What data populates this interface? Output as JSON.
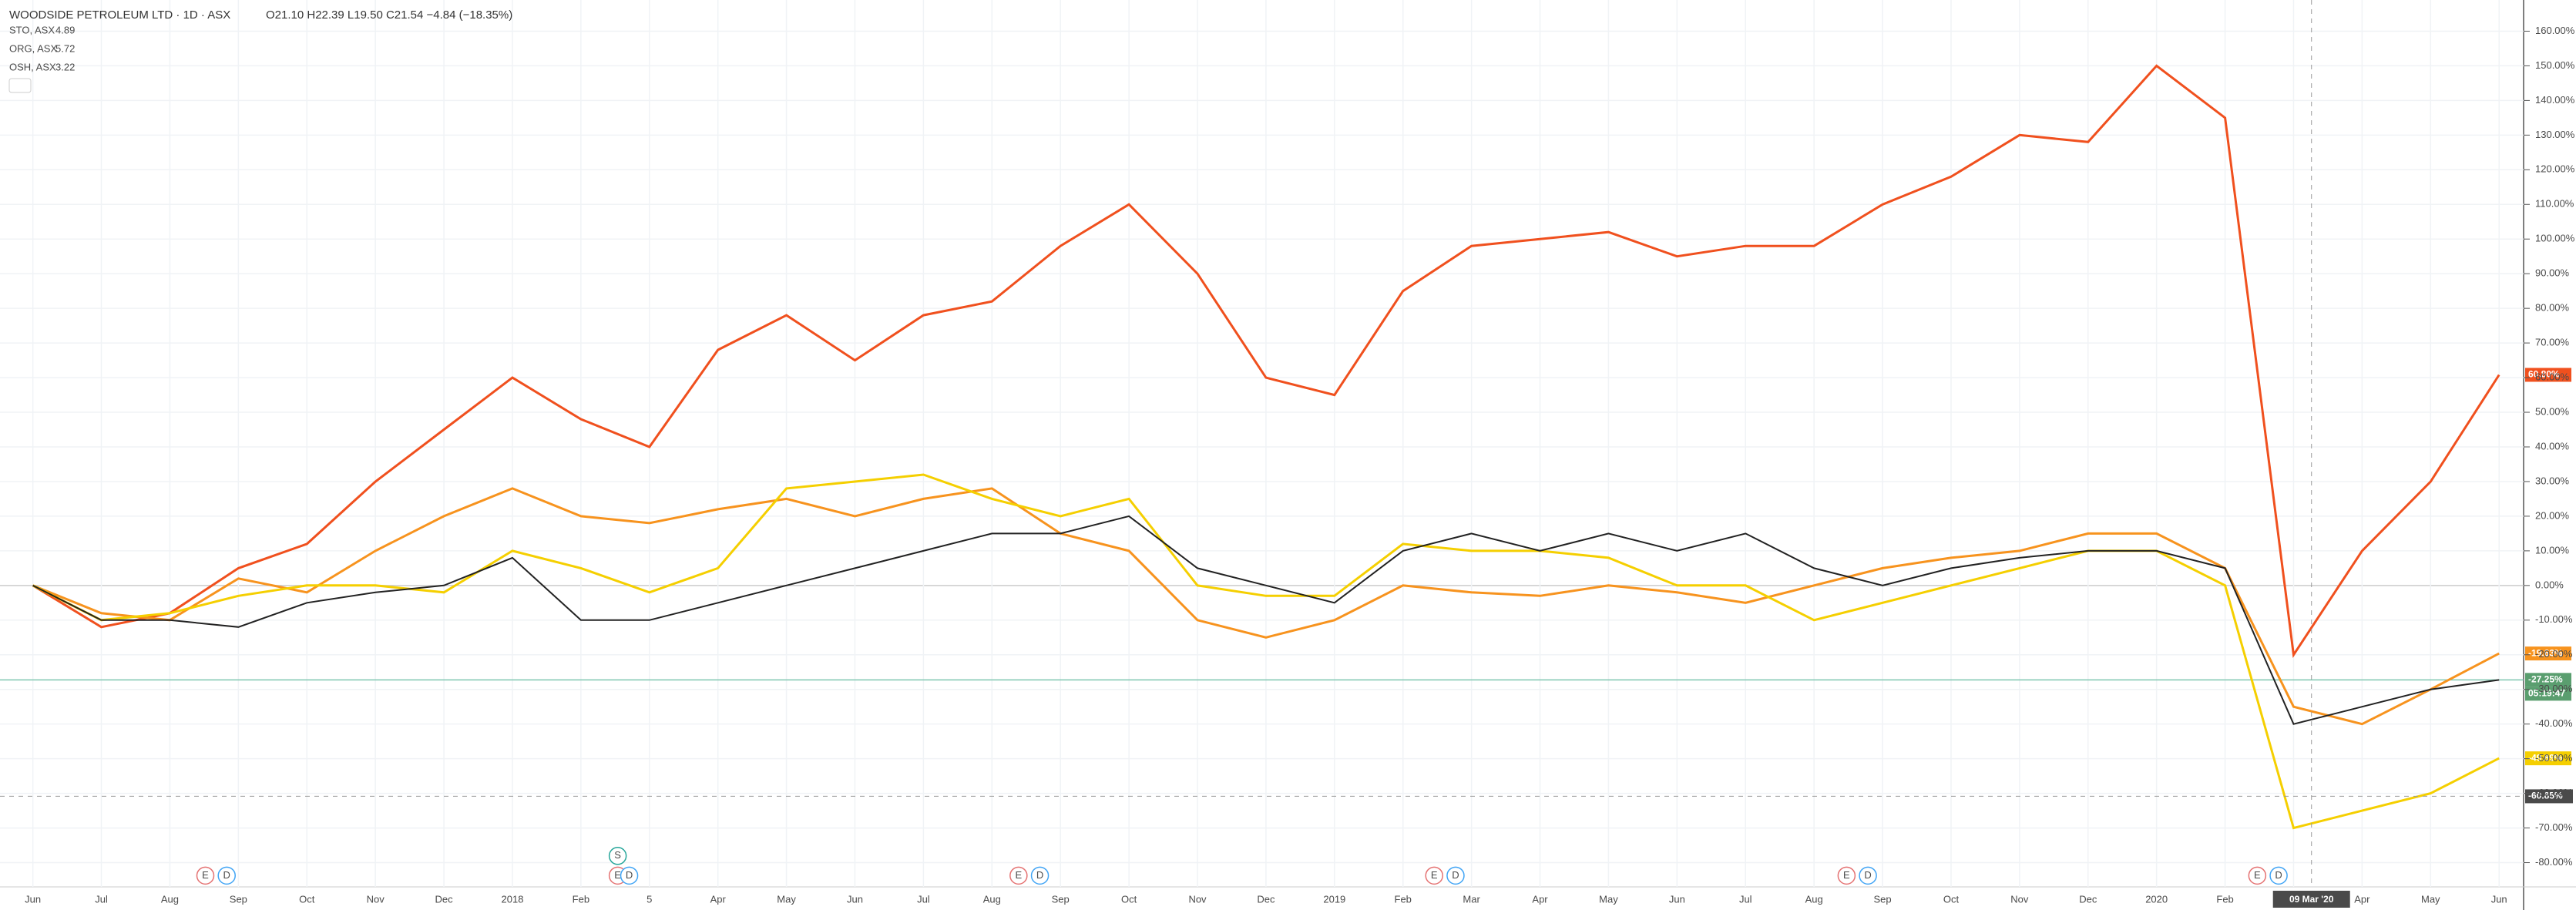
{
  "chart_data": {
    "type": "line",
    "title": "WOODSIDE PETROLEUM LTD · 1D · ASX",
    "ohlc_text": "O21.10 H22.39 L19.50 C21.54 −4.84 (−18.35%)",
    "categories": [
      "Jun",
      "Jul",
      "Aug",
      "Sep",
      "Oct",
      "Nov",
      "Dec",
      "2018",
      "Feb",
      "5",
      "Apr",
      "May",
      "Jun",
      "Jul",
      "Aug",
      "Sep",
      "Oct",
      "Nov",
      "Dec",
      "2019",
      "Feb",
      "Mar",
      "Apr",
      "May",
      "Jun",
      "Jul",
      "Aug",
      "Sep",
      "Oct",
      "Nov",
      "Dec",
      "2020",
      "Feb",
      null,
      "Apr",
      "May",
      "Jun"
    ],
    "series": [
      {
        "name": "STO, ASX",
        "price": "4.89",
        "color": "#f0501e",
        "last_label": "60.80%",
        "values": [
          0,
          -12,
          -8,
          5,
          12,
          30,
          45,
          60,
          48,
          40,
          68,
          78,
          65,
          78,
          82,
          98,
          110,
          90,
          60,
          55,
          85,
          98,
          100,
          102,
          95,
          98,
          98,
          110,
          118,
          130,
          128,
          150,
          135,
          -20,
          10,
          30,
          60.8
        ]
      },
      {
        "name": "ORG, ASX",
        "price": "5.72",
        "color": "#f7931e",
        "last_label": "-19.63%",
        "values": [
          0,
          -8,
          -10,
          2,
          -2,
          10,
          20,
          28,
          20,
          18,
          22,
          25,
          20,
          25,
          28,
          15,
          10,
          -10,
          -15,
          -10,
          0,
          -2,
          -3,
          0,
          -2,
          -5,
          0,
          5,
          8,
          10,
          15,
          15,
          5,
          -35,
          -40,
          -30,
          -19.63
        ]
      },
      {
        "name": "OSH, ASX",
        "price": "3.22",
        "color": "#f5cf00",
        "last_label": "-49.89%",
        "values": [
          0,
          -10,
          -8,
          -3,
          0,
          0,
          -2,
          10,
          5,
          -2,
          5,
          28,
          30,
          32,
          25,
          20,
          25,
          0,
          -3,
          -3,
          12,
          10,
          10,
          8,
          0,
          0,
          -10,
          -5,
          0,
          5,
          10,
          10,
          0,
          -70,
          -65,
          -60,
          -49.89
        ]
      },
      {
        "color": "#222222",
        "last_label": "-27.25%",
        "values": [
          0,
          -10,
          -10,
          -12,
          -5,
          -2,
          0,
          8,
          -10,
          -10,
          -5,
          0,
          5,
          10,
          15,
          15,
          20,
          5,
          0,
          -5,
          10,
          15,
          10,
          15,
          10,
          15,
          5,
          0,
          5,
          8,
          10,
          10,
          5,
          -40,
          -35,
          -30,
          -27.25
        ]
      }
    ],
    "countdown": "05:19:47",
    "crosshair": {
      "x_label": "09 Mar '20",
      "y": {
        "value": -60.85,
        "label": "-60.85%"
      }
    },
    "events": [
      [
        "E",
        "D"
      ],
      [
        "S",
        "E",
        "D"
      ],
      [
        "E",
        "D"
      ],
      [
        "E",
        "D"
      ],
      [
        "E",
        "D"
      ],
      [
        "E",
        "D"
      ]
    ],
    "ylim": [
      -87,
      169
    ],
    "yticks": [
      {
        "value": -80,
        "label": "-80.00%"
      },
      {
        "value": -70,
        "label": "-70.00%"
      },
      {
        "value": -60,
        "label": "-60.00%"
      },
      {
        "value": -50,
        "label": "-50.00%"
      },
      {
        "value": -40,
        "label": "-40.00%"
      },
      {
        "value": -30,
        "label": "-30.00%"
      },
      {
        "value": -20,
        "label": "-20.00%"
      },
      {
        "value": -10,
        "label": "-10.00%"
      },
      {
        "value": 0,
        "label": "0.00%"
      },
      {
        "value": 10,
        "label": "10.00%"
      },
      {
        "value": 20,
        "label": "20.00%"
      },
      {
        "value": 30,
        "label": "30.00%"
      },
      {
        "value": 40,
        "label": "40.00%"
      },
      {
        "value": 50,
        "label": "50.00%"
      },
      {
        "value": 60,
        "label": "60.00%"
      },
      {
        "value": 70,
        "label": "70.00%"
      },
      {
        "value": 80,
        "label": "80.00%"
      },
      {
        "value": 90,
        "label": "90.00%"
      },
      {
        "value": 100,
        "label": "100.00%"
      },
      {
        "value": 110,
        "label": "110.00%"
      },
      {
        "value": 120,
        "label": "120.00%"
      },
      {
        "value": 130,
        "label": "130.00%"
      },
      {
        "value": 140,
        "label": "140.00%"
      },
      {
        "value": 150,
        "label": "150.00%"
      },
      {
        "value": 160,
        "label": "160.00%"
      }
    ],
    "grid": true
  }
}
